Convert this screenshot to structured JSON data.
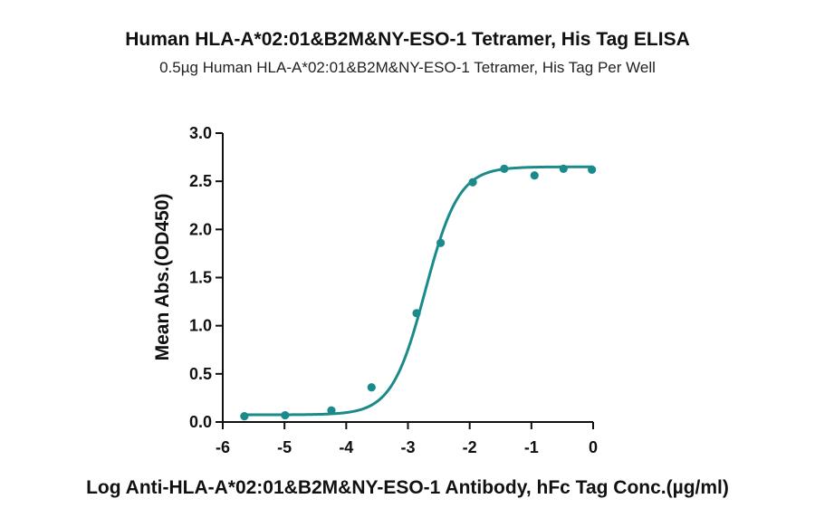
{
  "chart_data": {
    "type": "scatter",
    "title": "Human HLA-A*02:01&B2M&NY-ESO-1 Tetramer, His Tag ELISA",
    "subtitle": "0.5µg Human HLA-A*02:01&B2M&NY-ESO-1 Tetramer, His Tag Per Well",
    "xlabel": "Log Anti-HLA-A*02:01&B2M&NY-ESO-1 Antibody, hFc Tag Conc.(µg/ml)",
    "ylabel": "Mean Abs.(OD450)",
    "xlim": [
      -6,
      0
    ],
    "ylim": [
      0,
      3.0
    ],
    "x_ticks": [
      {
        "value": -6,
        "label": "-6"
      },
      {
        "value": -5,
        "label": "-5"
      },
      {
        "value": -4,
        "label": "-4"
      },
      {
        "value": -3,
        "label": "-3"
      },
      {
        "value": -2,
        "label": "-2"
      },
      {
        "value": -1,
        "label": "-1"
      },
      {
        "value": 0,
        "label": "0"
      }
    ],
    "y_ticks": [
      {
        "value": 0,
        "label": "0.0"
      },
      {
        "value": 0.5,
        "label": "0.5"
      },
      {
        "value": 1.0,
        "label": "1.0"
      },
      {
        "value": 1.5,
        "label": "1.5"
      },
      {
        "value": 2.0,
        "label": "2.0"
      },
      {
        "value": 2.5,
        "label": "2.5"
      },
      {
        "value": 3.0,
        "label": "3.0"
      }
    ],
    "grid": false,
    "color": "#1a8a8a",
    "points": [
      {
        "x": -5.65,
        "y": 0.06
      },
      {
        "x": -4.99,
        "y": 0.07
      },
      {
        "x": -4.24,
        "y": 0.12
      },
      {
        "x": -3.59,
        "y": 0.36
      },
      {
        "x": -2.86,
        "y": 1.13
      },
      {
        "x": -2.47,
        "y": 1.86
      },
      {
        "x": -1.95,
        "y": 2.49
      },
      {
        "x": -1.44,
        "y": 2.63
      },
      {
        "x": -0.95,
        "y": 2.56
      },
      {
        "x": -0.48,
        "y": 2.63
      },
      {
        "x": -0.02,
        "y": 2.62
      }
    ],
    "fit": {
      "model": "4PL",
      "bottom": 0.075,
      "top": 2.65,
      "logEC50": -2.72,
      "hill": 1.6,
      "x_range": [
        -5.7,
        0
      ]
    }
  }
}
